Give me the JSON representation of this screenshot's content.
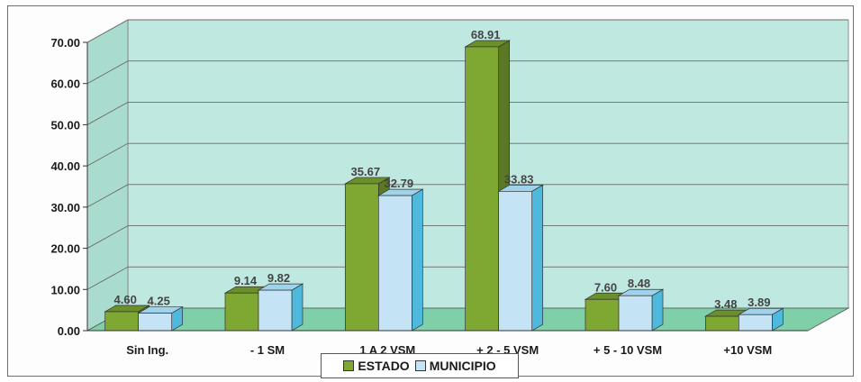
{
  "chart_data": {
    "type": "bar",
    "categories": [
      "Sin Ing.",
      "- 1 SM",
      "1 A 2 VSM",
      "+ 2 - 5 VSM",
      "+ 5 - 10 VSM",
      "+10 VSM"
    ],
    "series": [
      {
        "name": "ESTADO",
        "values": [
          4.6,
          9.14,
          35.67,
          68.91,
          7.6,
          3.48
        ],
        "labels": [
          "4.60",
          "9.14",
          "35.67",
          "68.91",
          "7.60",
          "3.48"
        ],
        "color": "#7ea832"
      },
      {
        "name": "MUNICIPIO",
        "values": [
          4.25,
          9.82,
          32.79,
          33.83,
          8.48,
          3.89
        ],
        "labels": [
          "4.25",
          "9.82",
          "32.79",
          "33.83",
          "8.48",
          "3.89"
        ],
        "color": "#c4e3f5"
      }
    ],
    "yticks": [
      "0.00",
      "10.00",
      "20.00",
      "30.00",
      "40.00",
      "50.00",
      "60.00",
      "70.00"
    ],
    "ylim": [
      0,
      70
    ],
    "grid": true,
    "legend_position": "bottom",
    "wall_color": "#bfe8e0",
    "floor_color": "#7fcfa8"
  }
}
